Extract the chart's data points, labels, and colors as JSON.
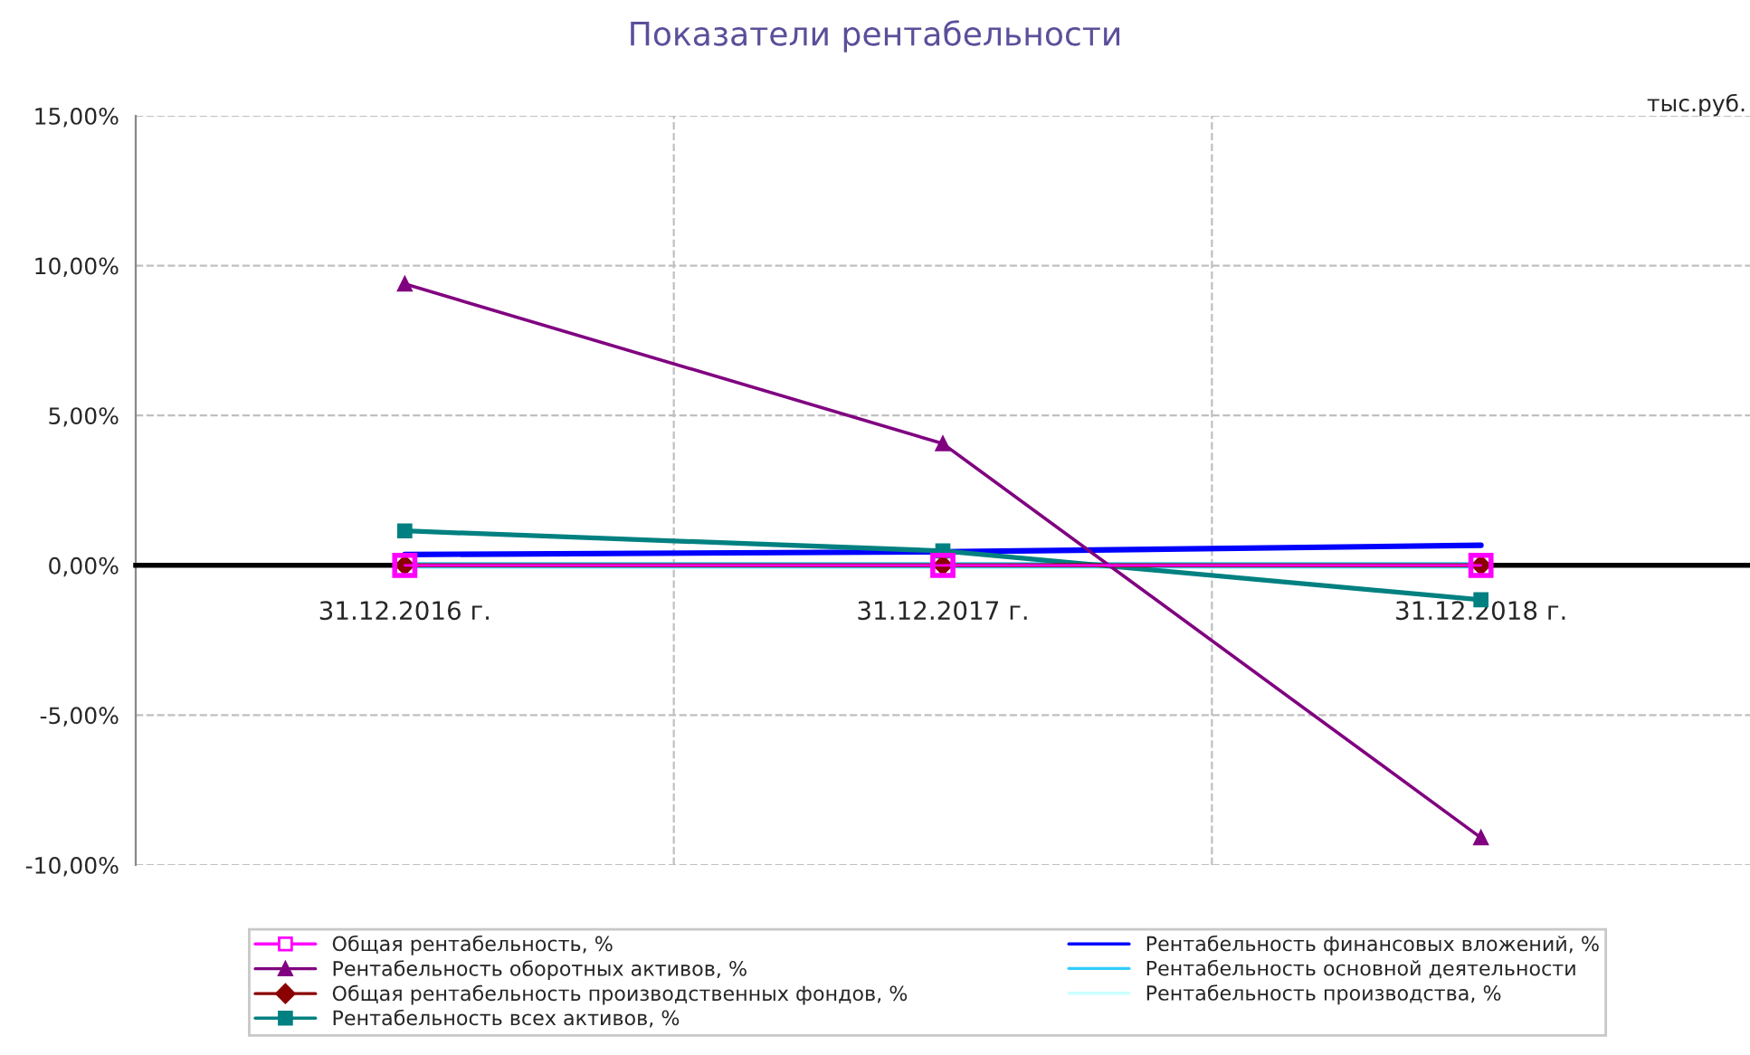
{
  "chart_data": {
    "type": "line",
    "title": "Показатели рентабельности",
    "categories": [
      "31.12.2016 г.",
      "31.12.2017 г.",
      "31.12.2018 г."
    ],
    "ylim": [
      -10,
      15
    ],
    "yticks": [
      {
        "value": -10,
        "label": "-10,00%"
      },
      {
        "value": -5,
        "label": "-5,00%"
      },
      {
        "value": 0,
        "label": "0,00%"
      },
      {
        "value": 5,
        "label": "5,00%"
      },
      {
        "value": 10,
        "label": "10,00%"
      },
      {
        "value": 15,
        "label": "15,00%"
      }
    ],
    "grid": true,
    "legend": "bottom",
    "annotations": [
      "тыс.руб."
    ],
    "series": [
      {
        "name": "Общая рентабельность, %",
        "color": "#ff00ff",
        "marker": "square",
        "values": [
          0,
          0,
          0
        ]
      },
      {
        "name": "Рентабельность оборотных активов, %",
        "color": "#800080",
        "marker": "triangle",
        "values": [
          9.39,
          4.06,
          -9.09
        ]
      },
      {
        "name": "Общая рентабельность производственных фондов, %",
        "color": "#8b0000",
        "marker": "diamond",
        "values": [
          0,
          0,
          0
        ]
      },
      {
        "name": "Рентабельность всех активов, %",
        "color": "#008080",
        "marker": "square",
        "values": [
          1.15,
          0.48,
          -1.15
        ]
      },
      {
        "name": "Рентабельность финансовых вложений, %",
        "color": "#0000ff",
        "marker": "none",
        "values": [
          0.36,
          0.45,
          0.67
        ]
      },
      {
        "name": "Рентабельность основной деятельности",
        "color": "#33ccff",
        "marker": "none",
        "values": [
          0,
          0,
          0
        ]
      },
      {
        "name": "Рентабельность производства, %",
        "color": "#ccffff",
        "marker": "none",
        "values": [
          null,
          null,
          null
        ]
      }
    ]
  }
}
